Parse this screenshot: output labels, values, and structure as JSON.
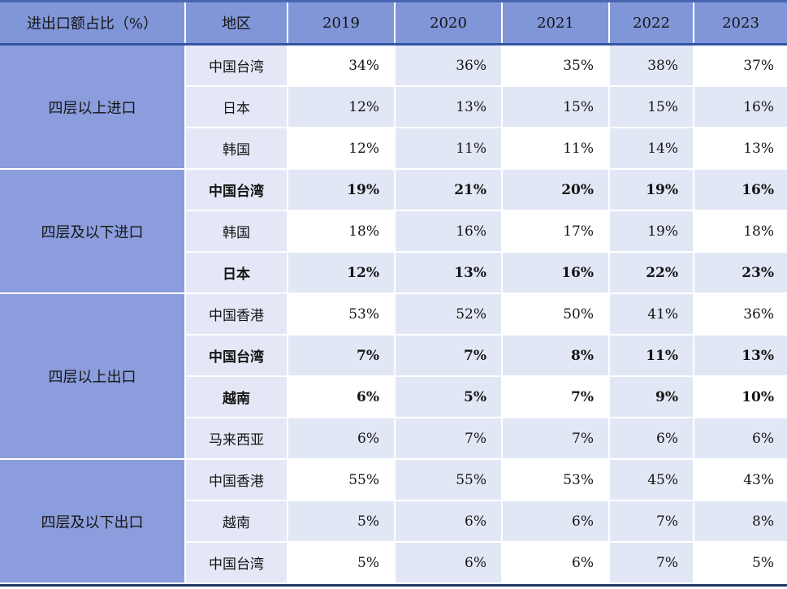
{
  "table": {
    "corner_header": "进出口额占比（%）",
    "region_header": "地区",
    "year_headers": [
      "2019",
      "2020",
      "2021",
      "2022",
      "2023"
    ],
    "groups": [
      {
        "label": "四层以上进口",
        "rows": [
          {
            "region": "中国台湾",
            "values": [
              "34%",
              "36%",
              "35%",
              "38%",
              "37%"
            ],
            "bold": false
          },
          {
            "region": "日本",
            "values": [
              "12%",
              "13%",
              "15%",
              "15%",
              "16%"
            ],
            "bold": false
          },
          {
            "region": "韩国",
            "values": [
              "12%",
              "11%",
              "11%",
              "14%",
              "13%"
            ],
            "bold": false
          }
        ]
      },
      {
        "label": "四层及以下进口",
        "rows": [
          {
            "region": "中国台湾",
            "values": [
              "19%",
              "21%",
              "20%",
              "19%",
              "16%"
            ],
            "bold": true
          },
          {
            "region": "韩国",
            "values": [
              "18%",
              "16%",
              "17%",
              "19%",
              "18%"
            ],
            "bold": false
          },
          {
            "region": "日本",
            "values": [
              "12%",
              "13%",
              "16%",
              "22%",
              "23%"
            ],
            "bold": true
          }
        ]
      },
      {
        "label": "四层以上出口",
        "rows": [
          {
            "region": "中国香港",
            "values": [
              "53%",
              "52%",
              "50%",
              "41%",
              "36%"
            ],
            "bold": false
          },
          {
            "region": "中国台湾",
            "values": [
              "7%",
              "7%",
              "8%",
              "11%",
              "13%"
            ],
            "bold": true
          },
          {
            "region": "越南",
            "values": [
              "6%",
              "5%",
              "7%",
              "9%",
              "10%"
            ],
            "bold": true
          },
          {
            "region": "马来西亚",
            "values": [
              "6%",
              "7%",
              "7%",
              "6%",
              "6%"
            ],
            "bold": false
          }
        ]
      },
      {
        "label": "四层及以下出口",
        "rows": [
          {
            "region": "中国香港",
            "values": [
              "55%",
              "55%",
              "53%",
              "45%",
              "43%"
            ],
            "bold": false
          },
          {
            "region": "越南",
            "values": [
              "5%",
              "6%",
              "6%",
              "7%",
              "8%"
            ],
            "bold": false
          },
          {
            "region": "中国台湾",
            "values": [
              "5%",
              "6%",
              "6%",
              "7%",
              "5%"
            ],
            "bold": false
          }
        ]
      }
    ],
    "colors": {
      "header_bg": "#8096d8",
      "group_bg": "#8b9ddc",
      "region_bg": "#e4e8f6",
      "band_bg": "#e1e7f5",
      "white_bg": "#ffffff",
      "top_border": "#4a66b2",
      "header_underline": "#3354a4",
      "bottom_border": "#1f3864",
      "text": "#151515"
    }
  },
  "chart_data": {
    "type": "table",
    "title": "进出口额占比（%）",
    "units": "%",
    "columns": [
      "进出口额占比（%）",
      "地区",
      "2019",
      "2020",
      "2021",
      "2022",
      "2023"
    ],
    "rows": [
      [
        "四层以上进口",
        "中国台湾",
        34,
        36,
        35,
        38,
        37
      ],
      [
        "四层以上进口",
        "日本",
        12,
        13,
        15,
        15,
        16
      ],
      [
        "四层以上进口",
        "韩国",
        12,
        11,
        11,
        14,
        13
      ],
      [
        "四层及以下进口",
        "中国台湾",
        19,
        21,
        20,
        19,
        16
      ],
      [
        "四层及以下进口",
        "韩国",
        18,
        16,
        17,
        19,
        18
      ],
      [
        "四层及以下进口",
        "日本",
        12,
        13,
        16,
        22,
        23
      ],
      [
        "四层以上出口",
        "中国香港",
        53,
        52,
        50,
        41,
        36
      ],
      [
        "四层以上出口",
        "中国台湾",
        7,
        7,
        8,
        11,
        13
      ],
      [
        "四层以上出口",
        "越南",
        6,
        5,
        7,
        9,
        10
      ],
      [
        "四层以上出口",
        "马来西亚",
        6,
        7,
        7,
        6,
        6
      ],
      [
        "四层及以下出口",
        "中国香港",
        55,
        55,
        53,
        45,
        43
      ],
      [
        "四层及以下出口",
        "越南",
        5,
        6,
        6,
        7,
        8
      ],
      [
        "四层及以下出口",
        "中国台湾",
        5,
        6,
        6,
        7,
        5
      ]
    ],
    "bold_rows": [
      3,
      5,
      7,
      8
    ],
    "layout": {
      "banding": "even rows fully shaded; odd rows shaded in 2020 and 2022 columns"
    }
  }
}
